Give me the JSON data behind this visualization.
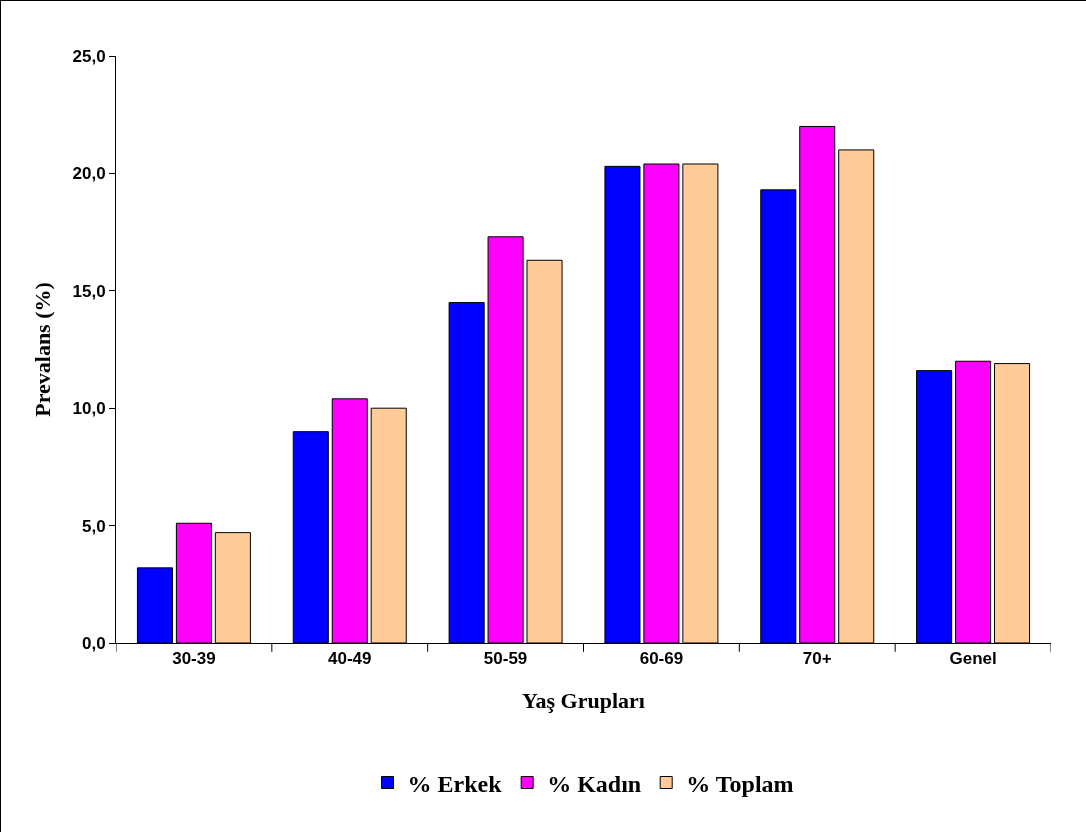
{
  "chart_data": {
    "type": "bar",
    "xlabel": "Yaş Grupları",
    "ylabel": "Prevalans (%)",
    "categories": [
      "30-39",
      "40-49",
      "50-59",
      "60-69",
      "70+",
      "Genel"
    ],
    "series": [
      {
        "name": "% Erkek",
        "color": "#0000ff",
        "values": [
          3.2,
          9.0,
          14.5,
          20.3,
          19.3,
          11.6
        ]
      },
      {
        "name": "% Kadın",
        "color": "#ff00ff",
        "values": [
          5.1,
          10.4,
          17.3,
          20.4,
          22.0,
          12.0
        ]
      },
      {
        "name": "% Toplam",
        "color": "#ffcc99",
        "values": [
          4.7,
          10.0,
          16.3,
          20.4,
          21.0,
          11.9
        ]
      }
    ],
    "ylim": [
      0,
      25
    ],
    "yticks": [
      {
        "value": 0,
        "label": "0,0"
      },
      {
        "value": 5,
        "label": "5,0"
      },
      {
        "value": 10,
        "label": "10,0"
      },
      {
        "value": 15,
        "label": "15,0"
      },
      {
        "value": 20,
        "label": "20,0"
      },
      {
        "value": 25,
        "label": "25,0"
      }
    ],
    "grid": false,
    "legend": "bottom"
  }
}
